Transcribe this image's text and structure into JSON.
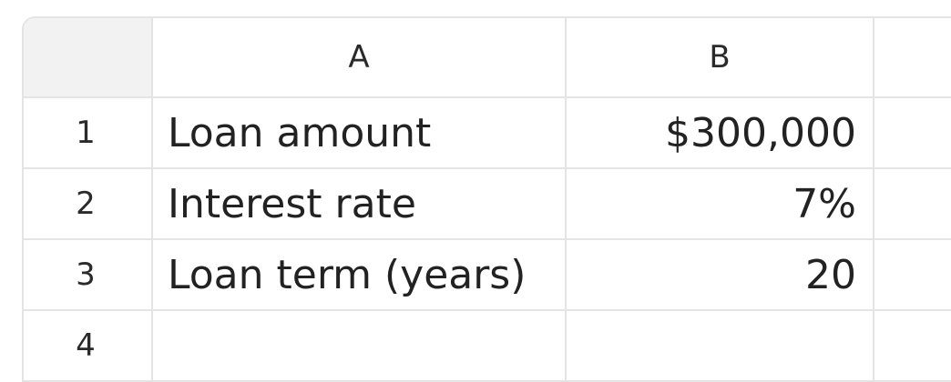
{
  "columns": [
    "A",
    "B"
  ],
  "rows": [
    {
      "num": "1",
      "a": "Loan amount",
      "b": "$300,000"
    },
    {
      "num": "2",
      "a": "Interest rate",
      "b": "7%"
    },
    {
      "num": "3",
      "a": "Loan term (years)",
      "b": "20"
    },
    {
      "num": "4",
      "a": "",
      "b": ""
    }
  ]
}
